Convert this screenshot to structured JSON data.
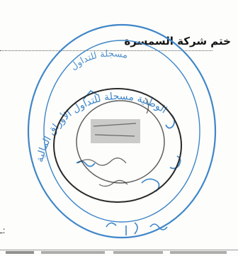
{
  "document": {
    "heading": "ختم شركة السمسرة",
    "left_fragment": "ـ:"
  },
  "stamps": {
    "outer_text": "الوطنية مسجلة للتداول الأوراق المالية",
    "middle_text": "مسجلة للتداول",
    "inner_text": "",
    "colors": {
      "blue": "#3f86c9",
      "black": "#2a2a2a"
    }
  }
}
